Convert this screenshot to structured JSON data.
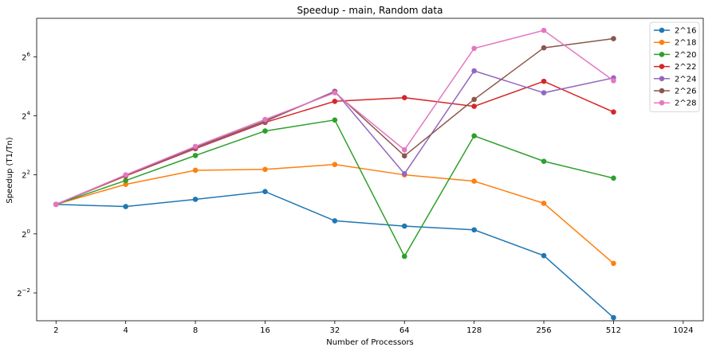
{
  "chart_data": {
    "type": "line",
    "title": "Speedup - main, Random data",
    "xlabel": "Number of Processors",
    "ylabel": "Speedup (T1/Tn)",
    "x_scale": "log2",
    "y_scale": "log2",
    "x": [
      2,
      4,
      8,
      16,
      32,
      64,
      128,
      256,
      512
    ],
    "x_ticks": [
      2,
      4,
      8,
      16,
      32,
      64,
      128,
      256,
      512,
      1024
    ],
    "x_tick_labels": [
      "2",
      "4",
      "8",
      "16",
      "32",
      "64",
      "128",
      "256",
      "512",
      "1024"
    ],
    "xlim": [
      1.65,
      1250
    ],
    "y_ticks": [
      0.25,
      1,
      4,
      16,
      64
    ],
    "y_tick_labels": [
      {
        "base": "2",
        "exp": "−2"
      },
      {
        "base": "2",
        "exp": "0"
      },
      {
        "base": "2",
        "exp": "2"
      },
      {
        "base": "2",
        "exp": "4"
      },
      {
        "base": "2",
        "exp": "6"
      }
    ],
    "ylim": [
      0.13,
      158
    ],
    "grid": false,
    "legend_position": "top-right",
    "series": [
      {
        "name": "2^16",
        "color": "#1f77b4",
        "values": [
          2.0,
          1.9,
          2.25,
          2.7,
          1.36,
          1.2,
          1.1,
          0.6,
          0.14
        ]
      },
      {
        "name": "2^18",
        "color": "#ff7f0e",
        "values": [
          2.0,
          3.2,
          4.45,
          4.55,
          5.1,
          4.0,
          3.45,
          2.05,
          0.5
        ]
      },
      {
        "name": "2^20",
        "color": "#2ca02c",
        "values": [
          2.0,
          3.5,
          6.3,
          11.2,
          14.5,
          0.59,
          10.0,
          5.5,
          3.7
        ]
      },
      {
        "name": "2^22",
        "color": "#d62728",
        "values": [
          2.0,
          3.9,
          7.4,
          13.7,
          22.5,
          24.5,
          20.0,
          36.0,
          17.5
        ]
      },
      {
        "name": "2^24",
        "color": "#9467bd",
        "values": [
          2.0,
          3.95,
          7.5,
          14.0,
          28.5,
          4.1,
          46.0,
          27.5,
          39.0
        ]
      },
      {
        "name": "2^26",
        "color": "#8c564b",
        "values": [
          2.0,
          3.95,
          7.6,
          14.2,
          28.0,
          6.25,
          23.5,
          79.0,
          98.0
        ]
      },
      {
        "name": "2^28",
        "color": "#e377c2",
        "values": [
          2.0,
          4.0,
          7.8,
          14.7,
          27.5,
          7.2,
          78.0,
          119.0,
          36.5
        ]
      }
    ]
  }
}
